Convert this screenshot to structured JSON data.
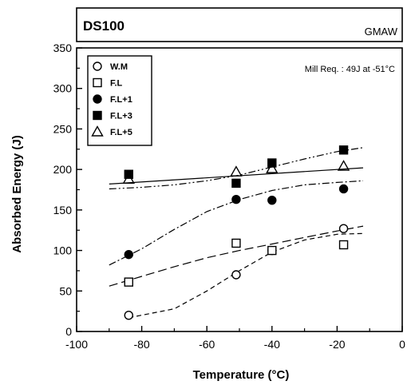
{
  "header": {
    "title": "DS100",
    "process": "GMAW"
  },
  "annotation": "Mill Req. : 49J at -51°C",
  "chart_data": {
    "type": "scatter",
    "title": "DS100",
    "xlabel": "Temperature (°C)",
    "ylabel": "Absorbed Energy (J)",
    "xlim": [
      -100,
      0
    ],
    "ylim": [
      0,
      350
    ],
    "xticks": [
      -100,
      -80,
      -60,
      -40,
      -20,
      0
    ],
    "xtick_labels": [
      "-100",
      "-80",
      "-60",
      "-40",
      "-20",
      "0"
    ],
    "yticks": [
      0,
      50,
      100,
      150,
      200,
      250,
      300,
      350
    ],
    "ytick_labels": [
      "0",
      "50",
      "100",
      "150",
      "200",
      "250",
      "300",
      "350"
    ],
    "grid": false,
    "legend_position": "top-left",
    "series": [
      {
        "name": "W.M",
        "marker": "circle-open",
        "line": "dashed",
        "points": [
          [
            -84,
            20
          ],
          [
            -51,
            70
          ],
          [
            -40,
            100
          ],
          [
            -18,
            127
          ]
        ],
        "fit": [
          [
            -84,
            17
          ],
          [
            -70,
            28
          ],
          [
            -60,
            50
          ],
          [
            -50,
            75
          ],
          [
            -40,
            98
          ],
          [
            -30,
            113
          ],
          [
            -20,
            120
          ],
          [
            -12,
            121
          ]
        ]
      },
      {
        "name": "F.L",
        "marker": "square-open",
        "line": "long-dash",
        "points": [
          [
            -84,
            61
          ],
          [
            -51,
            109
          ],
          [
            -40,
            100
          ],
          [
            -18,
            107
          ]
        ],
        "fit": [
          [
            -90,
            56
          ],
          [
            -80,
            68
          ],
          [
            -70,
            80
          ],
          [
            -60,
            91
          ],
          [
            -50,
            100
          ],
          [
            -40,
            108
          ],
          [
            -30,
            116
          ],
          [
            -20,
            124
          ],
          [
            -12,
            130
          ]
        ]
      },
      {
        "name": "F.L+1",
        "marker": "circle-filled",
        "line": "dash-dot",
        "points": [
          [
            -84,
            95
          ],
          [
            -51,
            163
          ],
          [
            -40,
            162
          ],
          [
            -18,
            176
          ]
        ],
        "fit": [
          [
            -90,
            82
          ],
          [
            -80,
            102
          ],
          [
            -70,
            126
          ],
          [
            -60,
            148
          ],
          [
            -50,
            163
          ],
          [
            -40,
            174
          ],
          [
            -30,
            181
          ],
          [
            -20,
            184
          ],
          [
            -12,
            186
          ]
        ]
      },
      {
        "name": "F.L+3",
        "marker": "square-filled",
        "line": "dash-dot-dot",
        "points": [
          [
            -84,
            194
          ],
          [
            -51,
            183
          ],
          [
            -40,
            208
          ],
          [
            -18,
            224
          ]
        ],
        "fit": [
          [
            -90,
            176
          ],
          [
            -80,
            178
          ],
          [
            -70,
            181
          ],
          [
            -60,
            186
          ],
          [
            -50,
            193
          ],
          [
            -40,
            203
          ],
          [
            -30,
            213
          ],
          [
            -20,
            222
          ],
          [
            -12,
            227
          ]
        ]
      },
      {
        "name": "F.L+5",
        "marker": "triangle-open",
        "line": "solid",
        "points": [
          [
            -84,
            188
          ],
          [
            -51,
            197
          ],
          [
            -40,
            201
          ],
          [
            -18,
            204
          ]
        ],
        "fit": [
          [
            -90,
            182
          ],
          [
            -12,
            202
          ]
        ]
      }
    ]
  }
}
